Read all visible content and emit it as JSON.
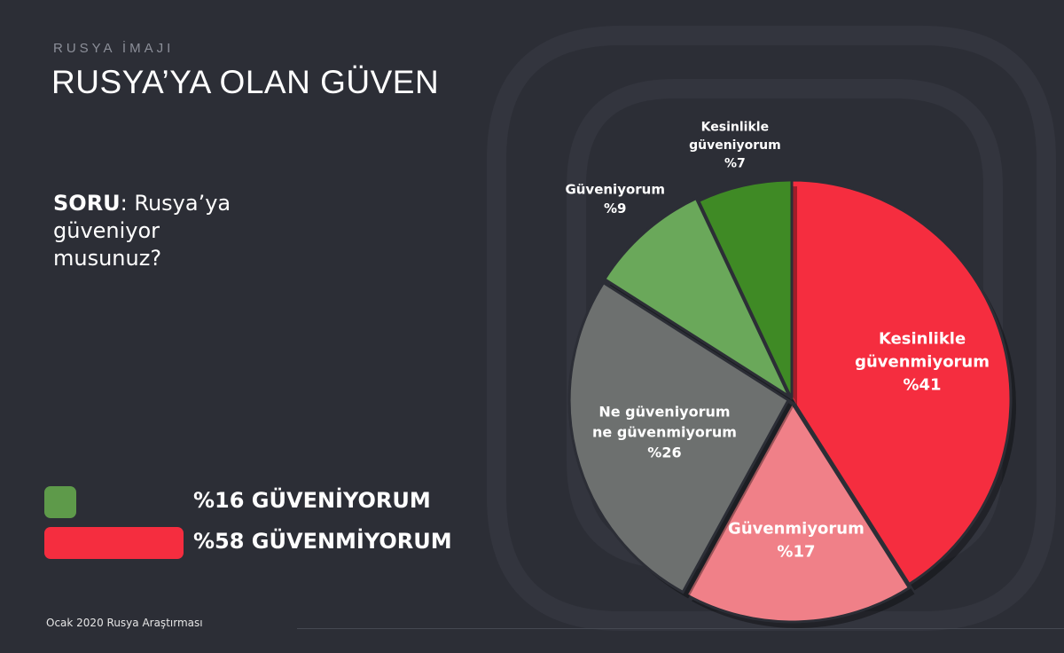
{
  "header": {
    "section_label": "RUSYA İMAJI",
    "title": "RUSYA’YA OLAN GÜVEN"
  },
  "question": {
    "prefix": "SORU",
    "text": ": Rusya’ya güveniyor musunuz?"
  },
  "legend": [
    {
      "label": "%16 GÜVENİYORUM",
      "color": "#5e9a4a"
    },
    {
      "label": "%58 GÜVENMİYORUM",
      "color": "#f52d3f"
    }
  ],
  "footer": {
    "source": "Ocak 2020 Rusya Araştırması"
  },
  "chart_data": {
    "type": "pie",
    "slices": [
      {
        "label_lines": [
          "Kesinlikle",
          "güvenmiyorum",
          "%41"
        ],
        "value": 41,
        "color": "#f52d3f"
      },
      {
        "label_lines": [
          "Güvenmiyorum",
          "%17"
        ],
        "value": 17,
        "color": "#f08088"
      },
      {
        "label_lines": [
          "Ne güveniyorum",
          "ne güvenmiyorum",
          "%26"
        ],
        "value": 26,
        "color": "#6d706f"
      },
      {
        "label_lines": [
          "Güveniyorum",
          "%9"
        ],
        "value": 9,
        "color": "#6aa85a"
      },
      {
        "label_lines": [
          "Kesinlikle",
          "güveniyorum",
          "%7"
        ],
        "value": 7,
        "color": "#3f8a25"
      }
    ]
  }
}
